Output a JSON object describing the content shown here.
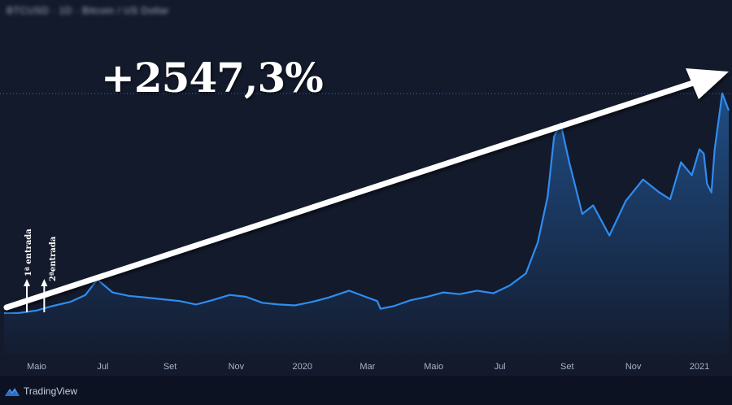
{
  "header": {
    "title": "BTCUSD · 1D · Bitcoin / US Dollar"
  },
  "annotation": {
    "gain_label": "+2547,3%",
    "entry1_label": "1ª entrada",
    "entry2_label": "2ªentrada"
  },
  "brand": {
    "name": "TradingView"
  },
  "colors": {
    "background": "#131a2c",
    "line": "#2f8cf0",
    "arrow": "#ffffff",
    "reference_line": "#2f8cf0"
  },
  "chart_data": {
    "type": "area",
    "title": "",
    "xlabel": "",
    "ylabel": "",
    "x_ticks": [
      "Maio",
      "Jul",
      "Set",
      "Nov",
      "2020",
      "Mar",
      "Maio",
      "Jul",
      "Set",
      "Nov",
      "2021"
    ],
    "x": [
      "2019-04-01",
      "2019-04-15",
      "2019-05-01",
      "2019-05-15",
      "2019-06-01",
      "2019-06-15",
      "2019-06-26",
      "2019-07-10",
      "2019-07-25",
      "2019-08-10",
      "2019-08-25",
      "2019-09-10",
      "2019-09-25",
      "2019-10-10",
      "2019-10-26",
      "2019-11-10",
      "2019-11-25",
      "2019-12-10",
      "2019-12-25",
      "2020-01-10",
      "2020-01-25",
      "2020-02-13",
      "2020-02-28",
      "2020-03-10",
      "2020-03-13",
      "2020-03-25",
      "2020-04-10",
      "2020-04-25",
      "2020-05-10",
      "2020-05-25",
      "2020-06-10",
      "2020-06-25",
      "2020-07-10",
      "2020-07-25",
      "2020-08-05",
      "2020-08-14",
      "2020-08-20",
      "2020-08-26",
      "2020-09-03",
      "2020-09-15",
      "2020-09-25",
      "2020-10-10",
      "2020-10-25",
      "2020-11-10",
      "2020-11-25",
      "2020-12-05",
      "2020-12-15",
      "2020-12-25",
      "2021-01-01",
      "2021-01-05",
      "2021-01-08",
      "2021-01-12",
      "2021-01-15",
      "2021-01-22",
      "2021-01-28"
    ],
    "values": [
      1.0,
      1.02,
      1.3,
      1.8,
      2.3,
      3.1,
      4.9,
      3.4,
      3.0,
      2.8,
      2.6,
      2.4,
      2.0,
      2.5,
      3.1,
      2.9,
      2.2,
      2.0,
      1.9,
      2.3,
      2.8,
      3.6,
      2.9,
      2.4,
      1.5,
      1.8,
      2.5,
      2.9,
      3.4,
      3.2,
      3.6,
      3.3,
      4.2,
      5.6,
      9.2,
      14.5,
      21.5,
      23.0,
      18.5,
      12.5,
      13.5,
      10.0,
      14.0,
      16.5,
      15.0,
      14.2,
      18.5,
      17.0,
      20.0,
      19.5,
      16.0,
      15.0,
      20.0,
      26.5,
      24.5
    ],
    "y_reference": 26.47,
    "gain_percent": 2547.3,
    "entries": [
      {
        "label": "1ª entrada",
        "date": "2019-04-22"
      },
      {
        "label": "2ªentrada",
        "date": "2019-05-08"
      }
    ]
  }
}
